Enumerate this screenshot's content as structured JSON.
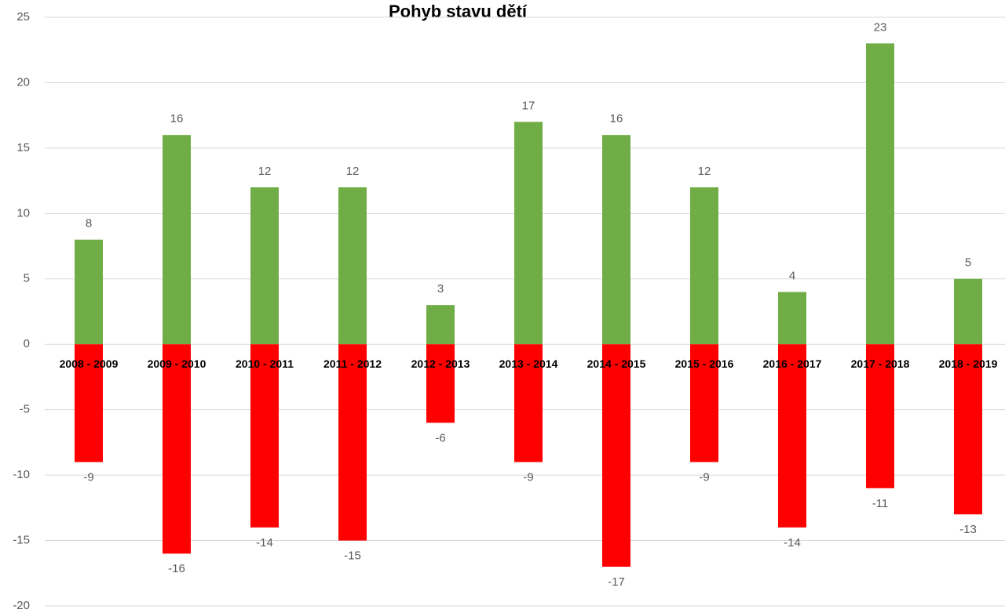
{
  "chart_data": {
    "type": "bar",
    "title": "Pohyb stavu dětí",
    "categories": [
      "2008 - 2009",
      "2009 - 2010",
      "2010 - 2011",
      "2011 - 2012",
      "2012 - 2013",
      "2013 - 2014",
      "2014 - 2015",
      "2015 - 2016",
      "2016 - 2017",
      "2017 - 2018",
      "2018 - 2019"
    ],
    "series": [
      {
        "color": "#70ad47",
        "values": [
          8,
          16,
          12,
          12,
          3,
          17,
          16,
          12,
          4,
          23,
          5
        ]
      },
      {
        "color": "#ff0000",
        "values": [
          -9,
          -16,
          -14,
          -15,
          -6,
          -9,
          -17,
          -9,
          -14,
          -11,
          -13
        ]
      }
    ],
    "ylim": [
      -20,
      25
    ],
    "yticks": [
      -20,
      -15,
      -10,
      -5,
      0,
      5,
      10,
      15,
      20,
      25
    ],
    "grid": true
  }
}
